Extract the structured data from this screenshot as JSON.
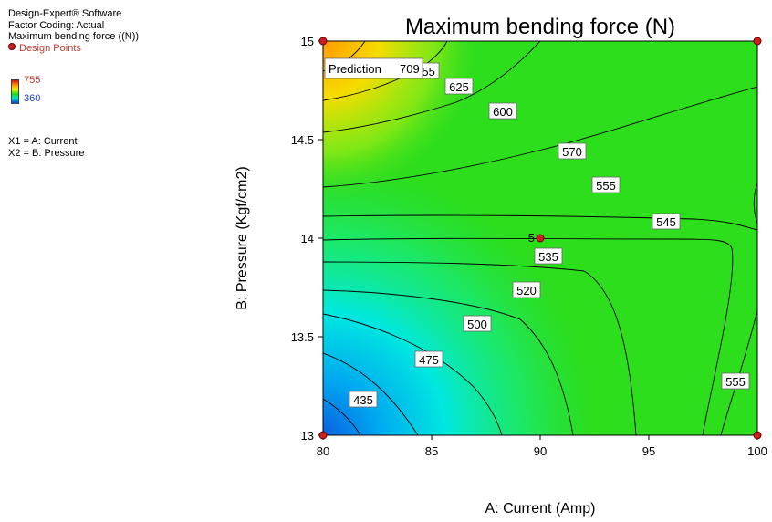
{
  "info": {
    "software": "Design-Expert® Software",
    "coding": "Factor Coding: Actual",
    "response": "Maximum bending force ((N))",
    "design_points": "Design Points",
    "legend_high": "755",
    "legend_low": "360",
    "x1": "X1 = A: Current",
    "x2": "X2 = B: Pressure"
  },
  "colors": {
    "high": "#d01010",
    "mid": "#10e010",
    "low": "#0040d0",
    "point": "#cc1e1e"
  },
  "chart_data": {
    "type": "contour",
    "title": "Maximum bending force (N)",
    "xlabel": "A: Current (Amp)",
    "ylabel": "B: Pressure (Kgf/cm2)",
    "xlim": [
      80,
      100
    ],
    "ylim": [
      13,
      15
    ],
    "x_ticks": [
      "80",
      "85",
      "90",
      "95",
      "100"
    ],
    "y_ticks": [
      "13",
      "13.5",
      "14",
      "14.5",
      "15"
    ],
    "color_range": [
      360,
      755
    ],
    "contour_levels": [
      "435",
      "475",
      "500",
      "520",
      "535",
      "545",
      "555",
      "570",
      "600",
      "625",
      "655",
      "555"
    ],
    "prediction": {
      "label": "Prediction",
      "value": "709",
      "x": 80,
      "y": 15
    },
    "design_points": [
      {
        "x": 80,
        "y": 15
      },
      {
        "x": 100,
        "y": 15
      },
      {
        "x": 80,
        "y": 13
      },
      {
        "x": 100,
        "y": 13
      },
      {
        "x": 90,
        "y": 14,
        "label": "5"
      }
    ]
  }
}
